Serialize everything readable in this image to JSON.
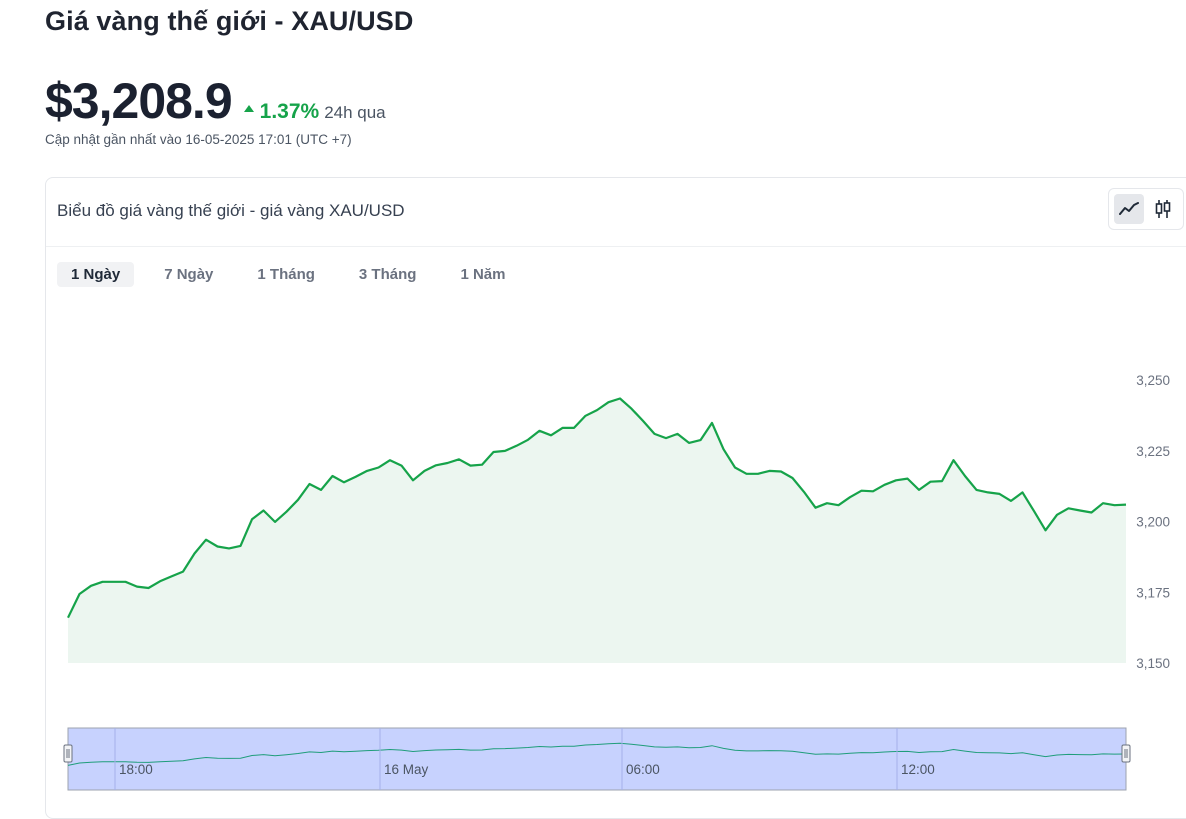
{
  "page": {
    "title": "Giá vàng thế giới - XAU/USD",
    "price": "$3,208.9",
    "change_percent": "1.37%",
    "change_period": "24h qua",
    "updated": "Cập nhật gần nhất vào 16-05-2025 17:01 (UTC +7)"
  },
  "card": {
    "title": "Biểu đồ giá vàng thế giới - giá vàng XAU/USD",
    "tabs": [
      "1 Ngày",
      "7 Ngày",
      "1 Tháng",
      "3 Tháng",
      "1 Năm"
    ],
    "active_tab": 0,
    "chart_modes": [
      "line-chart-icon",
      "candlestick-icon"
    ]
  },
  "colors": {
    "line": "#16a34a",
    "area": "#ecf6f0",
    "up": "#16a34a",
    "navigator_bg": "#c7d2fe",
    "navigator_line": "#1f9d7a"
  },
  "chart_data": {
    "type": "area",
    "ylim": [
      3150,
      3255
    ],
    "y_ticks": [
      3150,
      3175,
      3200,
      3225,
      3250
    ],
    "y_tick_labels": [
      "3,150",
      "3,175",
      "3,200",
      "3,225",
      "3,250"
    ],
    "navigator_ticks": [
      "18:00",
      "16 May",
      "06:00",
      "12:00"
    ],
    "values": [
      3166.0,
      3174.4,
      3177.3,
      3178.7,
      3178.7,
      3178.7,
      3177.0,
      3176.5,
      3178.9,
      3180.6,
      3182.3,
      3188.7,
      3193.6,
      3191.2,
      3190.5,
      3191.4,
      3200.8,
      3203.9,
      3199.9,
      3203.5,
      3207.7,
      3213.3,
      3211.2,
      3216.1,
      3213.9,
      3215.8,
      3217.9,
      3219.1,
      3221.7,
      3219.8,
      3214.6,
      3217.9,
      3219.9,
      3220.7,
      3222.0,
      3219.8,
      3220.1,
      3224.6,
      3225.0,
      3226.8,
      3228.9,
      3232.1,
      3230.5,
      3233.1,
      3233.1,
      3237.4,
      3239.4,
      3242.2,
      3243.5,
      3239.9,
      3235.6,
      3231.0,
      3229.5,
      3231.0,
      3227.8,
      3228.8,
      3234.9,
      3225.6,
      3219.1,
      3216.9,
      3216.9,
      3217.9,
      3217.7,
      3215.4,
      3210.5,
      3204.9,
      3206.5,
      3205.8,
      3208.6,
      3210.9,
      3210.7,
      3213.0,
      3214.6,
      3215.2,
      3211.2,
      3214.1,
      3214.3,
      3221.7,
      3216.1,
      3211.2,
      3210.3,
      3209.8,
      3207.3,
      3210.3,
      3203.7,
      3196.9,
      3202.4,
      3204.7,
      3203.9,
      3203.2,
      3206.5,
      3205.8,
      3206.0
    ]
  }
}
